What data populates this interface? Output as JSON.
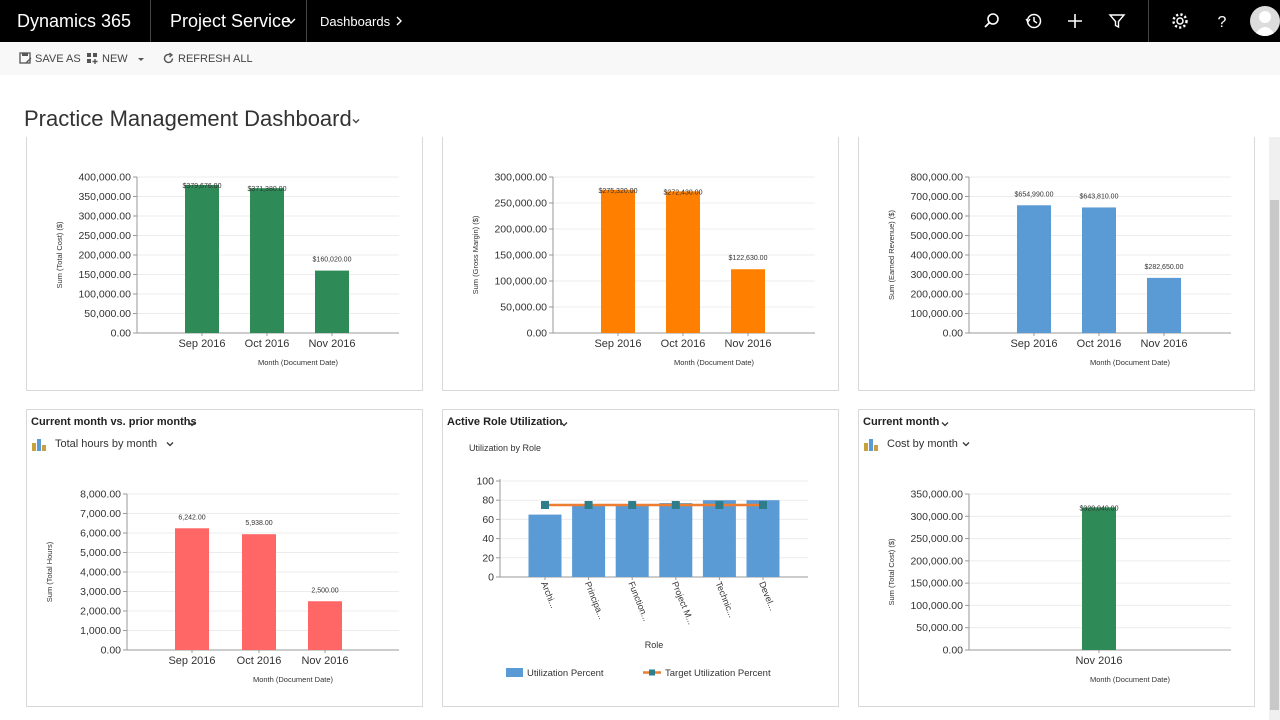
{
  "topbar": {
    "brand": "Dynamics 365",
    "app": "Project Service",
    "area": "Dashboards",
    "icons": [
      "search-icon",
      "history-icon",
      "plus-icon",
      "filter-icon",
      "gear-icon",
      "help-icon",
      "avatar"
    ]
  },
  "command_bar": {
    "save_as": "SAVE AS",
    "new": "NEW",
    "refresh_all": "REFRESH ALL"
  },
  "dashboard": {
    "title": "Practice Management Dashboard"
  },
  "panels": {
    "p4": {
      "title": "Current month vs. prior months",
      "view": "Total hours by month"
    },
    "p5": {
      "title": "Active Role Utilization"
    },
    "p6": {
      "title": "Current month",
      "view": "Cost by month"
    }
  },
  "chart_data": [
    {
      "id": "c1",
      "type": "bar",
      "color": "#2e8b57",
      "categories": [
        "Sep 2016",
        "Oct 2016",
        "Nov 2016"
      ],
      "values": [
        379676,
        371380,
        160020
      ],
      "data_labels": [
        "$379,676.00",
        "$371,380.00",
        "$160,020.00"
      ],
      "ylim": [
        0,
        400000
      ],
      "yticks": [
        "0.00",
        "50,000.00",
        "100,000.00",
        "150,000.00",
        "200,000.00",
        "250,000.00",
        "300,000.00",
        "350,000.00",
        "400,000.00"
      ],
      "ylabel": "Sum (Total Cost) ($)",
      "xlabel": "Month (Document Date)"
    },
    {
      "id": "c2",
      "type": "bar",
      "color": "#ff8000",
      "categories": [
        "Sep 2016",
        "Oct 2016",
        "Nov 2016"
      ],
      "values": [
        275320,
        272430,
        122630
      ],
      "data_labels": [
        "$275,320.00",
        "$272,430.00",
        "$122,630.00"
      ],
      "ylim": [
        0,
        300000
      ],
      "yticks": [
        "0.00",
        "50,000.00",
        "100,000.00",
        "150,000.00",
        "200,000.00",
        "250,000.00",
        "300,000.00"
      ],
      "ylabel": "Sum (Gross Margin) ($)",
      "xlabel": "Month (Document Date)"
    },
    {
      "id": "c3",
      "type": "bar",
      "color": "#5b9bd5",
      "categories": [
        "Sep 2016",
        "Oct 2016",
        "Nov 2016"
      ],
      "values": [
        654990,
        643810,
        282650
      ],
      "data_labels": [
        "$654,990.00",
        "$643,810.00",
        "$282,650.00"
      ],
      "ylim": [
        0,
        800000
      ],
      "yticks": [
        "0.00",
        "100,000.00",
        "200,000.00",
        "300,000.00",
        "400,000.00",
        "500,000.00",
        "600,000.00",
        "700,000.00",
        "800,000.00"
      ],
      "ylabel": "Sum (Earned Revenue) ($)",
      "xlabel": "Month (Document Date)"
    },
    {
      "id": "c4",
      "type": "bar",
      "color": "#ff6666",
      "categories": [
        "Sep 2016",
        "Oct 2016",
        "Nov 2016"
      ],
      "values": [
        6242,
        5938,
        2500
      ],
      "data_labels": [
        "6,242.00",
        "5,938.00",
        "2,500.00"
      ],
      "ylim": [
        0,
        8000
      ],
      "yticks": [
        "0.00",
        "1,000.00",
        "2,000.00",
        "3,000.00",
        "4,000.00",
        "5,000.00",
        "6,000.00",
        "7,000.00",
        "8,000.00"
      ],
      "ylabel": "Sum (Total Hours)",
      "xlabel": "Month (Document Date)"
    },
    {
      "id": "c5",
      "type": "bar",
      "title": "Utilization by Role",
      "categories": [
        "Archi...",
        "Principa...",
        "Function...",
        "Project M...",
        "Technic...",
        "Devel..."
      ],
      "series": [
        {
          "name": "Utilization Percent",
          "type": "bar",
          "color": "#5b9bd5",
          "values": [
            65,
            75,
            75,
            77,
            80,
            80
          ]
        },
        {
          "name": "Target Utilization Percent",
          "type": "line",
          "color": "#ed7d31",
          "marker_color": "#2e7d8c",
          "values": [
            75,
            75,
            75,
            75,
            75,
            75
          ]
        }
      ],
      "ylim": [
        0,
        100
      ],
      "yticks": [
        "0",
        "20",
        "40",
        "60",
        "80",
        "100"
      ],
      "xlabel": "Role",
      "ylabel": "",
      "legend": "bottom"
    },
    {
      "id": "c6",
      "type": "bar",
      "color": "#2e8b57",
      "categories": [
        "Nov 2016"
      ],
      "values": [
        320040
      ],
      "data_labels": [
        "$320,040.00"
      ],
      "ylim": [
        0,
        350000
      ],
      "yticks": [
        "0.00",
        "50,000.00",
        "100,000.00",
        "150,000.00",
        "200,000.00",
        "250,000.00",
        "300,000.00",
        "350,000.00"
      ],
      "ylabel": "Sum (Total Cost) ($)",
      "xlabel": "Month (Document Date)"
    }
  ]
}
